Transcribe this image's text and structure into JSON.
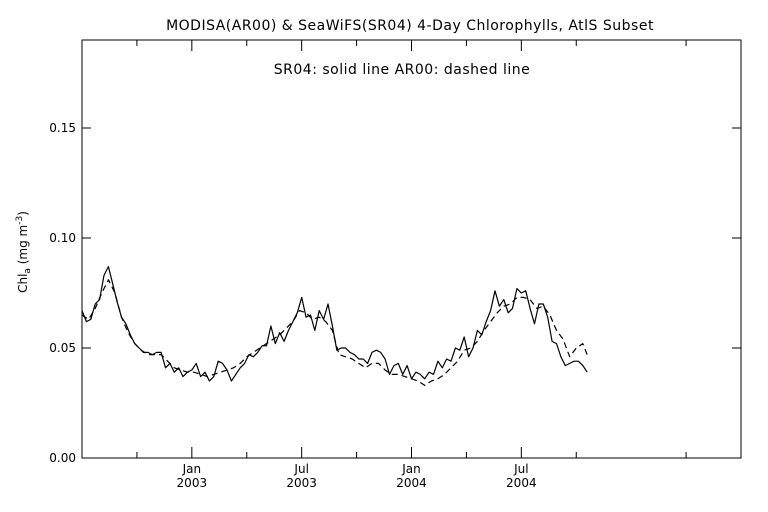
{
  "chart_data": {
    "type": "line",
    "title": "MODISA(AR00) & SeaWiFS(SR04) 4-Day Chlorophylls, AtlS Subset",
    "legend_note": "SR04: solid line   AR00: dashed line",
    "ylabel": "Chl_a (mg m^-3)",
    "ylabel_parts": {
      "main": "Chl",
      "sub": "a",
      "unit_open": " (mg m",
      "sup": "-3",
      "close": ")"
    },
    "xlabel": "",
    "ylim": [
      0,
      0.19
    ],
    "xlim": [
      2002.0,
      2005.0
    ],
    "grid": false,
    "y_ticks": [
      {
        "value": 0.0,
        "label": "0.00"
      },
      {
        "value": 0.05,
        "label": "0.05"
      },
      {
        "value": 0.1,
        "label": "0.10"
      },
      {
        "value": 0.15,
        "label": "0.15"
      }
    ],
    "x_minor_ticks": [
      2002.25,
      2002.75,
      2003.25,
      2003.75,
      2004.25,
      2004.75
    ],
    "x_ticks": [
      {
        "value": 2002.5,
        "month": "Jan",
        "year": "2003"
      },
      {
        "value": 2003.0,
        "month": "Jul",
        "year": "2003"
      },
      {
        "value": 2003.5,
        "month": "Jan",
        "year": "2004"
      },
      {
        "value": 2004.0,
        "month": "Jul",
        "year": "2004"
      }
    ],
    "series": [
      {
        "style": "solid",
        "color": "#000000",
        "points": [
          [
            2002.0,
            0.067
          ],
          [
            2002.02,
            0.062
          ],
          [
            2002.04,
            0.063
          ],
          [
            2002.06,
            0.07
          ],
          [
            2002.08,
            0.072
          ],
          [
            2002.1,
            0.083
          ],
          [
            2002.12,
            0.087
          ],
          [
            2002.14,
            0.079
          ],
          [
            2002.16,
            0.071
          ],
          [
            2002.18,
            0.064
          ],
          [
            2002.2,
            0.061
          ],
          [
            2002.22,
            0.056
          ],
          [
            2002.24,
            0.052
          ],
          [
            2002.26,
            0.05
          ],
          [
            2002.28,
            0.048
          ],
          [
            2002.3,
            0.048
          ],
          [
            2002.32,
            0.047
          ],
          [
            2002.34,
            0.048
          ],
          [
            2002.36,
            0.048
          ],
          [
            2002.38,
            0.041
          ],
          [
            2002.4,
            0.043
          ],
          [
            2002.42,
            0.039
          ],
          [
            2002.44,
            0.041
          ],
          [
            2002.46,
            0.037
          ],
          [
            2002.48,
            0.039
          ],
          [
            2002.5,
            0.04
          ],
          [
            2002.52,
            0.043
          ],
          [
            2002.54,
            0.037
          ],
          [
            2002.56,
            0.039
          ],
          [
            2002.58,
            0.035
          ],
          [
            2002.6,
            0.037
          ],
          [
            2002.62,
            0.044
          ],
          [
            2002.64,
            0.043
          ],
          [
            2002.66,
            0.04
          ],
          [
            2002.68,
            0.035
          ],
          [
            2002.7,
            0.038
          ],
          [
            2002.72,
            0.041
          ],
          [
            2002.74,
            0.043
          ],
          [
            2002.76,
            0.047
          ],
          [
            2002.78,
            0.046
          ],
          [
            2002.8,
            0.048
          ],
          [
            2002.82,
            0.051
          ],
          [
            2002.84,
            0.051
          ],
          [
            2002.86,
            0.06
          ],
          [
            2002.88,
            0.052
          ],
          [
            2002.9,
            0.057
          ],
          [
            2002.92,
            0.053
          ],
          [
            2002.94,
            0.058
          ],
          [
            2002.96,
            0.062
          ],
          [
            2002.98,
            0.066
          ],
          [
            2003.0,
            0.073
          ],
          [
            2003.02,
            0.064
          ],
          [
            2003.04,
            0.065
          ],
          [
            2003.06,
            0.058
          ],
          [
            2003.08,
            0.067
          ],
          [
            2003.1,
            0.063
          ],
          [
            2003.12,
            0.07
          ],
          [
            2003.14,
            0.06
          ],
          [
            2003.16,
            0.049
          ],
          [
            2003.18,
            0.05
          ],
          [
            2003.2,
            0.05
          ],
          [
            2003.22,
            0.048
          ],
          [
            2003.24,
            0.047
          ],
          [
            2003.26,
            0.045
          ],
          [
            2003.28,
            0.045
          ],
          [
            2003.3,
            0.043
          ],
          [
            2003.32,
            0.048
          ],
          [
            2003.34,
            0.049
          ],
          [
            2003.36,
            0.048
          ],
          [
            2003.38,
            0.045
          ],
          [
            2003.4,
            0.038
          ],
          [
            2003.42,
            0.042
          ],
          [
            2003.44,
            0.043
          ],
          [
            2003.46,
            0.038
          ],
          [
            2003.48,
            0.042
          ],
          [
            2003.5,
            0.036
          ],
          [
            2003.52,
            0.039
          ],
          [
            2003.54,
            0.038
          ],
          [
            2003.56,
            0.036
          ],
          [
            2003.58,
            0.039
          ],
          [
            2003.6,
            0.038
          ],
          [
            2003.62,
            0.044
          ],
          [
            2003.64,
            0.041
          ],
          [
            2003.66,
            0.045
          ],
          [
            2003.68,
            0.044
          ],
          [
            2003.7,
            0.05
          ],
          [
            2003.72,
            0.049
          ],
          [
            2003.74,
            0.055
          ],
          [
            2003.76,
            0.046
          ],
          [
            2003.78,
            0.05
          ],
          [
            2003.8,
            0.058
          ],
          [
            2003.82,
            0.056
          ],
          [
            2003.84,
            0.062
          ],
          [
            2003.86,
            0.067
          ],
          [
            2003.88,
            0.076
          ],
          [
            2003.9,
            0.069
          ],
          [
            2003.92,
            0.072
          ],
          [
            2003.94,
            0.066
          ],
          [
            2003.96,
            0.068
          ],
          [
            2003.98,
            0.077
          ],
          [
            2004.0,
            0.075
          ],
          [
            2004.02,
            0.076
          ],
          [
            2004.04,
            0.068
          ],
          [
            2004.06,
            0.061
          ],
          [
            2004.08,
            0.07
          ],
          [
            2004.1,
            0.07
          ],
          [
            2004.12,
            0.064
          ],
          [
            2004.14,
            0.053
          ],
          [
            2004.16,
            0.052
          ],
          [
            2004.18,
            0.046
          ],
          [
            2004.2,
            0.042
          ],
          [
            2004.22,
            0.043
          ],
          [
            2004.24,
            0.044
          ],
          [
            2004.26,
            0.044
          ],
          [
            2004.28,
            0.042
          ],
          [
            2004.3,
            0.039
          ]
        ]
      },
      {
        "style": "dashed",
        "color": "#000000",
        "points": [
          [
            2002.0,
            0.065
          ],
          [
            2002.03,
            0.063
          ],
          [
            2002.06,
            0.068
          ],
          [
            2002.09,
            0.075
          ],
          [
            2002.12,
            0.081
          ],
          [
            2002.15,
            0.075
          ],
          [
            2002.18,
            0.064
          ],
          [
            2002.21,
            0.057
          ],
          [
            2002.24,
            0.052
          ],
          [
            2002.27,
            0.049
          ],
          [
            2002.3,
            0.047
          ],
          [
            2002.33,
            0.047
          ],
          [
            2002.36,
            0.047
          ],
          [
            2002.39,
            0.044
          ],
          [
            2002.42,
            0.041
          ],
          [
            2002.45,
            0.04
          ],
          [
            2002.48,
            0.039
          ],
          [
            2002.51,
            0.039
          ],
          [
            2002.54,
            0.038
          ],
          [
            2002.57,
            0.037
          ],
          [
            2002.6,
            0.038
          ],
          [
            2002.63,
            0.039
          ],
          [
            2002.66,
            0.04
          ],
          [
            2002.69,
            0.041
          ],
          [
            2002.72,
            0.043
          ],
          [
            2002.75,
            0.046
          ],
          [
            2002.78,
            0.048
          ],
          [
            2002.81,
            0.05
          ],
          [
            2002.84,
            0.052
          ],
          [
            2002.87,
            0.054
          ],
          [
            2002.9,
            0.056
          ],
          [
            2002.93,
            0.059
          ],
          [
            2002.96,
            0.062
          ],
          [
            2002.99,
            0.067
          ],
          [
            2003.02,
            0.066
          ],
          [
            2003.05,
            0.063
          ],
          [
            2003.08,
            0.064
          ],
          [
            2003.11,
            0.062
          ],
          [
            2003.14,
            0.058
          ],
          [
            2003.17,
            0.047
          ],
          [
            2003.2,
            0.046
          ],
          [
            2003.23,
            0.045
          ],
          [
            2003.26,
            0.043
          ],
          [
            2003.29,
            0.041
          ],
          [
            2003.32,
            0.043
          ],
          [
            2003.35,
            0.043
          ],
          [
            2003.38,
            0.04
          ],
          [
            2003.41,
            0.038
          ],
          [
            2003.44,
            0.038
          ],
          [
            2003.47,
            0.037
          ],
          [
            2003.5,
            0.036
          ],
          [
            2003.53,
            0.035
          ],
          [
            2003.56,
            0.033
          ],
          [
            2003.59,
            0.035
          ],
          [
            2003.62,
            0.036
          ],
          [
            2003.65,
            0.038
          ],
          [
            2003.68,
            0.041
          ],
          [
            2003.71,
            0.044
          ],
          [
            2003.74,
            0.049
          ],
          [
            2003.77,
            0.05
          ],
          [
            2003.8,
            0.053
          ],
          [
            2003.83,
            0.058
          ],
          [
            2003.86,
            0.062
          ],
          [
            2003.89,
            0.066
          ],
          [
            2003.92,
            0.069
          ],
          [
            2003.95,
            0.07
          ],
          [
            2003.98,
            0.073
          ],
          [
            2004.01,
            0.073
          ],
          [
            2004.04,
            0.072
          ],
          [
            2004.07,
            0.068
          ],
          [
            2004.1,
            0.069
          ],
          [
            2004.13,
            0.065
          ],
          [
            2004.16,
            0.058
          ],
          [
            2004.19,
            0.054
          ],
          [
            2004.22,
            0.046
          ],
          [
            2004.25,
            0.05
          ],
          [
            2004.28,
            0.052
          ],
          [
            2004.3,
            0.047
          ]
        ]
      }
    ]
  }
}
